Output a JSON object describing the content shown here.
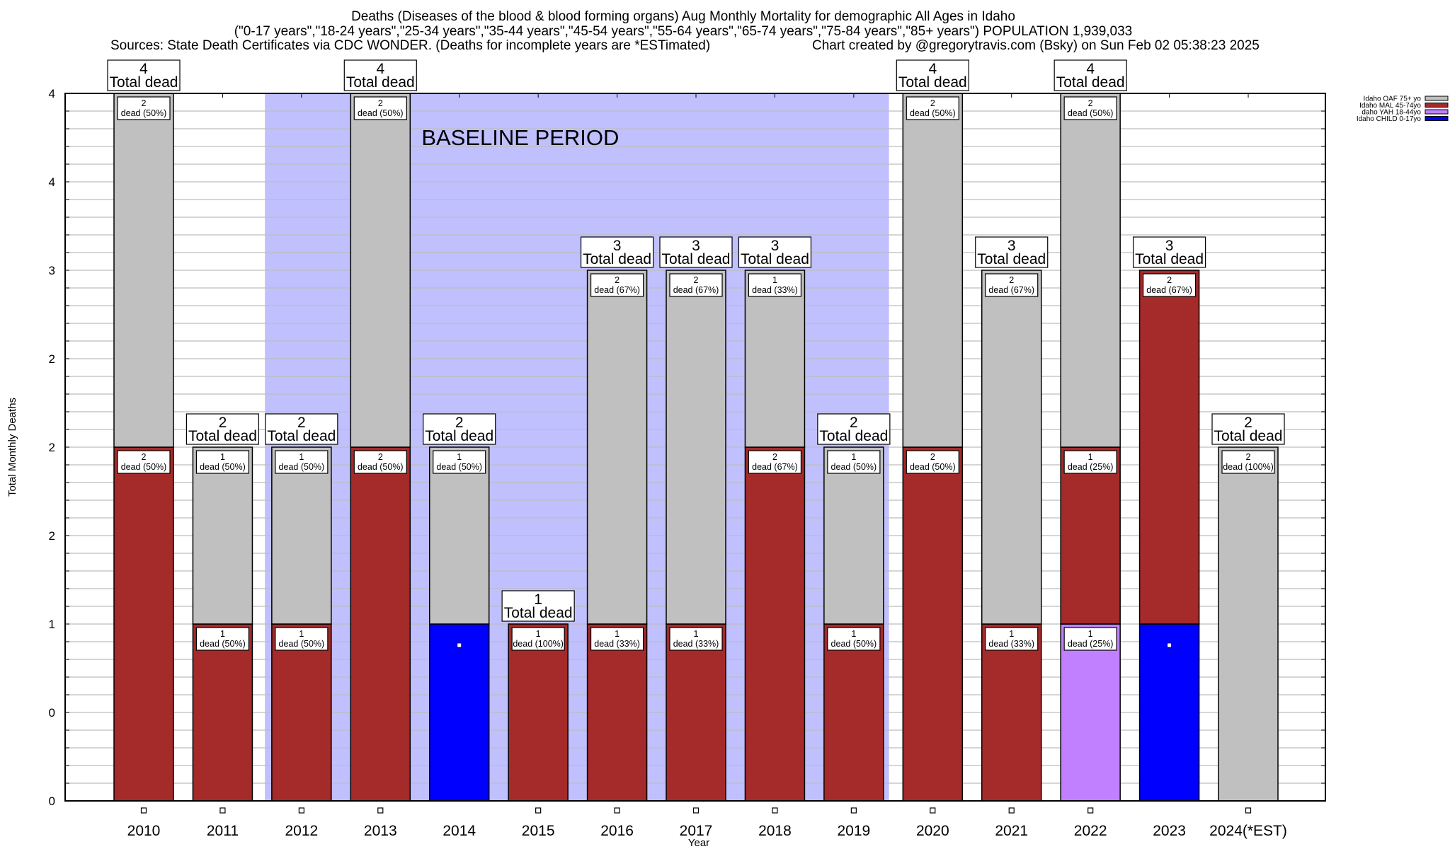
{
  "header": {
    "title_line1": "Deaths (Diseases of the blood & blood forming organs) Aug Monthly Mortality for demographic All Ages in Idaho",
    "title_line2": "(\"0-17 years\",\"18-24 years\",\"25-34 years\",\"35-44 years\",\"45-54 years\",\"55-64 years\",\"65-74 years\",\"75-84 years\",\"85+ years\") POPULATION 1,939,033",
    "sources": "Sources: State Death Certificates via CDC WONDER. (Deaths for incomplete years are *ESTimated)",
    "credit": "Chart created by @gregorytravis.com (Bsky) on Sun Feb 02 05:38:23 2025"
  },
  "chart_data": {
    "type": "bar",
    "stacked": true,
    "xlabel": "Year",
    "ylabel": "Total Monthly Deaths",
    "ylim": [
      0,
      4
    ],
    "grid": true,
    "y_ticks": [
      {
        "value": 0,
        "label": "0"
      },
      {
        "value": 0.5,
        "label": "0"
      },
      {
        "value": 1,
        "label": "1"
      },
      {
        "value": 1.5,
        "label": "2"
      },
      {
        "value": 2,
        "label": "2"
      },
      {
        "value": 2.5,
        "label": "2"
      },
      {
        "value": 3,
        "label": "3"
      },
      {
        "value": 3.5,
        "label": "4"
      },
      {
        "value": 4,
        "label": "4"
      }
    ],
    "categories": [
      "2010",
      "2011",
      "2012",
      "2013",
      "2014",
      "2015",
      "2016",
      "2017",
      "2018",
      "2019",
      "2020",
      "2021",
      "2022",
      "2023",
      "2024(*EST)"
    ],
    "legend_position": "top-right",
    "series": [
      {
        "name": "Idaho CHILD 0-17yo",
        "color": "#0000ff",
        "values": [
          0,
          0,
          0,
          0,
          1,
          0,
          0,
          0,
          0,
          0,
          0,
          0,
          0,
          1,
          0
        ]
      },
      {
        "name": "daho YAH 18-44yo",
        "color": "#c080ff",
        "values": [
          0,
          0,
          0,
          0,
          0,
          0,
          0,
          0,
          0,
          0,
          0,
          0,
          1,
          0,
          0
        ]
      },
      {
        "name": "Idaho MAL 45-74yo",
        "color": "#a52a2a",
        "values": [
          2,
          1,
          1,
          2,
          0,
          1,
          1,
          1,
          2,
          1,
          2,
          1,
          1,
          2,
          0
        ]
      },
      {
        "name": "Idaho OAF 75+ yo",
        "color": "#c0c0c0",
        "values": [
          2,
          1,
          1,
          2,
          1,
          0,
          2,
          2,
          1,
          1,
          2,
          2,
          2,
          0,
          2
        ]
      }
    ],
    "legend_order": [
      "Idaho OAF 75+ yo",
      "Idaho MAL 45-74yo",
      "daho YAH 18-44yo",
      "Idaho CHILD 0-17yo"
    ],
    "totals": [
      4,
      2,
      2,
      4,
      2,
      1,
      3,
      3,
      3,
      2,
      4,
      3,
      4,
      3,
      2
    ],
    "total_label_suffix": "Total dead",
    "segment_labels": [
      [
        {
          "series": "MAL",
          "text1": "2",
          "text2": "dead (50%)"
        },
        {
          "series": "OAF",
          "text1": "2",
          "text2": "dead (50%)"
        }
      ],
      [
        {
          "series": "MAL",
          "text1": "1",
          "text2": "dead (50%)"
        },
        {
          "series": "OAF",
          "text1": "1",
          "text2": "dead (50%)"
        }
      ],
      [
        {
          "series": "MAL",
          "text1": "1",
          "text2": "dead (50%)"
        },
        {
          "series": "OAF",
          "text1": "1",
          "text2": "dead (50%)"
        }
      ],
      [
        {
          "series": "MAL",
          "text1": "2",
          "text2": "dead (50%)"
        },
        {
          "series": "OAF",
          "text1": "2",
          "text2": "dead (50%)"
        }
      ],
      [
        {
          "series": "OAF",
          "text1": "1",
          "text2": "dead (50%)"
        }
      ],
      [
        {
          "series": "MAL",
          "text1": "1",
          "text2": "dead (100%)"
        }
      ],
      [
        {
          "series": "MAL",
          "text1": "1",
          "text2": "dead (33%)"
        },
        {
          "series": "OAF",
          "text1": "2",
          "text2": "dead (67%)"
        }
      ],
      [
        {
          "series": "MAL",
          "text1": "1",
          "text2": "dead (33%)"
        },
        {
          "series": "OAF",
          "text1": "2",
          "text2": "dead (67%)"
        }
      ],
      [
        {
          "series": "MAL",
          "text1": "2",
          "text2": "dead (67%)"
        },
        {
          "series": "OAF",
          "text1": "1",
          "text2": "dead (33%)"
        }
      ],
      [
        {
          "series": "MAL",
          "text1": "1",
          "text2": "dead (50%)"
        },
        {
          "series": "OAF",
          "text1": "1",
          "text2": "dead (50%)"
        }
      ],
      [
        {
          "series": "MAL",
          "text1": "2",
          "text2": "dead (50%)"
        },
        {
          "series": "OAF",
          "text1": "2",
          "text2": "dead (50%)"
        }
      ],
      [
        {
          "series": "MAL",
          "text1": "1",
          "text2": "dead (33%)"
        },
        {
          "series": "OAF",
          "text1": "2",
          "text2": "dead (67%)"
        }
      ],
      [
        {
          "series": "YAH",
          "text1": "1",
          "text2": "dead (25%)"
        },
        {
          "series": "MAL",
          "text1": "1",
          "text2": "dead (25%)"
        },
        {
          "series": "OAF",
          "text1": "2",
          "text2": "dead (50%)"
        }
      ],
      [
        {
          "series": "MAL",
          "text1": "2",
          "text2": "dead (67%)"
        }
      ],
      [
        {
          "series": "OAF",
          "text1": "2",
          "text2": "dead (100%)"
        }
      ]
    ],
    "annotation": {
      "text": "BASELINE PERIOD",
      "start_category": "2012",
      "end_category": "2019",
      "color": "#c0c0ff"
    },
    "baseline_markers_on": [
      "2010",
      "2011",
      "2012",
      "2013",
      "2015",
      "2016",
      "2017",
      "2018",
      "2019",
      "2020",
      "2021",
      "2022",
      "2024(*EST)"
    ],
    "child_markers_on": [
      "2014",
      "2023"
    ]
  }
}
